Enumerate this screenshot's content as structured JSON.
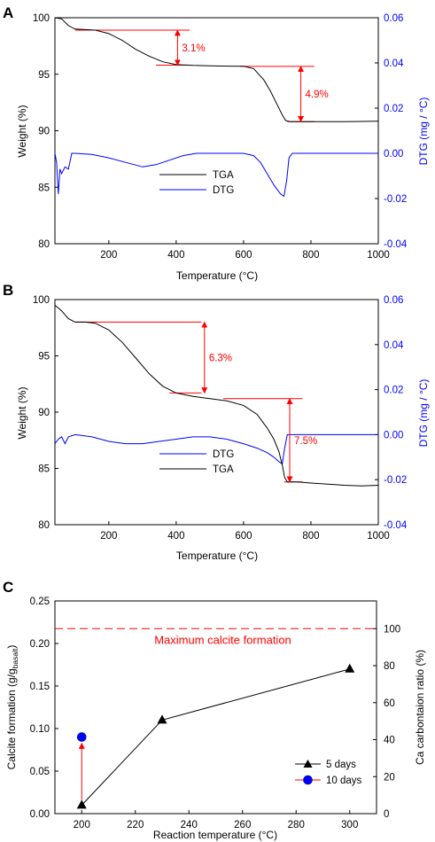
{
  "chart_data": [
    {
      "panel_label": "A",
      "type": "line",
      "xlabel": "Temperature (°C)",
      "ylabel_left": "Weight (%)",
      "ylabel_right": "DTG (mg / °C)",
      "xlim": [
        40,
        1000
      ],
      "ylim_left": [
        80,
        100
      ],
      "ylim_right": [
        -0.04,
        0.06
      ],
      "xticks": [
        200,
        400,
        600,
        800,
        1000
      ],
      "yticks_left": [
        80,
        85,
        90,
        95,
        100
      ],
      "yticks_right": [
        "-0.04",
        "-0.02",
        "0.00",
        "0.02",
        "0.04",
        "0.06"
      ],
      "series": [
        {
          "name": "TGA",
          "axis": "left",
          "color": "#000000",
          "points": [
            [
              40,
              100
            ],
            [
              60,
              99.9
            ],
            [
              80,
              99.3
            ],
            [
              100,
              99.0
            ],
            [
              130,
              98.95
            ],
            [
              160,
              98.9
            ],
            [
              200,
              98.6
            ],
            [
              240,
              98.0
            ],
            [
              280,
              97.2
            ],
            [
              320,
              96.6
            ],
            [
              360,
              96.1
            ],
            [
              400,
              95.85
            ],
            [
              450,
              95.78
            ],
            [
              500,
              95.75
            ],
            [
              550,
              95.72
            ],
            [
              600,
              95.7
            ],
            [
              630,
              95.5
            ],
            [
              660,
              94.5
            ],
            [
              680,
              93.5
            ],
            [
              700,
              92.3
            ],
            [
              715,
              91.4
            ],
            [
              725,
              90.9
            ],
            [
              740,
              90.8
            ],
            [
              800,
              90.8
            ],
            [
              900,
              90.8
            ],
            [
              1000,
              90.85
            ]
          ]
        },
        {
          "name": "DTG",
          "axis": "right",
          "color": "#0000ff",
          "points": [
            [
              40,
              0.0
            ],
            [
              45,
              -0.004
            ],
            [
              50,
              -0.018
            ],
            [
              55,
              -0.007
            ],
            [
              60,
              -0.009
            ],
            [
              70,
              -0.006
            ],
            [
              80,
              -0.007
            ],
            [
              90,
              0.0
            ],
            [
              100,
              0.0
            ],
            [
              150,
              -0.0005
            ],
            [
              200,
              -0.002
            ],
            [
              250,
              -0.004
            ],
            [
              300,
              -0.006
            ],
            [
              340,
              -0.005
            ],
            [
              380,
              -0.003
            ],
            [
              420,
              -0.001
            ],
            [
              460,
              0.0
            ],
            [
              500,
              0.0
            ],
            [
              560,
              0.0
            ],
            [
              600,
              0.0
            ],
            [
              630,
              -0.001
            ],
            [
              650,
              -0.004
            ],
            [
              670,
              -0.009
            ],
            [
              690,
              -0.014
            ],
            [
              700,
              -0.016
            ],
            [
              710,
              -0.018
            ],
            [
              720,
              -0.019
            ],
            [
              728,
              -0.012
            ],
            [
              735,
              -0.002
            ],
            [
              745,
              0.0
            ],
            [
              800,
              0.0
            ],
            [
              1000,
              0.0
            ]
          ]
        }
      ],
      "legend": {
        "position": "center",
        "entries": [
          "TGA",
          "DTG"
        ]
      },
      "annotations": [
        {
          "text": "3.1%",
          "color": "#ff0000",
          "x": 404,
          "y_from": 98.9,
          "y_to": 95.8
        },
        {
          "text": "4.9%",
          "color": "#ff0000",
          "x": 770,
          "y_from": 95.7,
          "y_to": 90.8
        }
      ],
      "reference_lines": [
        {
          "y": 98.9,
          "x_from": 100,
          "x_to": 440
        },
        {
          "y": 95.8,
          "x_from": 340,
          "x_to": 440
        },
        {
          "y": 95.7,
          "x_from": 590,
          "x_to": 810
        },
        {
          "y": 90.8,
          "x_from": 730,
          "x_to": 810
        }
      ]
    },
    {
      "panel_label": "B",
      "type": "line",
      "xlabel": "Temperature (°C)",
      "ylabel_left": "Weight (%)",
      "ylabel_right": "DTG (mg / °C)",
      "xlim": [
        40,
        1000
      ],
      "ylim_left": [
        80,
        100
      ],
      "ylim_right": [
        -0.04,
        0.06
      ],
      "xticks": [
        200,
        400,
        600,
        800,
        1000
      ],
      "yticks_left": [
        80,
        85,
        90,
        95,
        100
      ],
      "yticks_right": [
        "-0.04",
        "-0.02",
        "0.00",
        "0.02",
        "0.04",
        "0.06"
      ],
      "series": [
        {
          "name": "DTG",
          "axis": "right",
          "color": "#0000ff",
          "points": [
            [
              40,
              -0.004
            ],
            [
              50,
              -0.002
            ],
            [
              60,
              -0.001
            ],
            [
              70,
              -0.004
            ],
            [
              80,
              -0.001
            ],
            [
              100,
              0.0
            ],
            [
              150,
              -0.001
            ],
            [
              200,
              -0.003
            ],
            [
              250,
              -0.004
            ],
            [
              300,
              -0.004
            ],
            [
              350,
              -0.003
            ],
            [
              400,
              -0.002
            ],
            [
              450,
              -0.001
            ],
            [
              500,
              -0.001
            ],
            [
              550,
              -0.002
            ],
            [
              600,
              -0.004
            ],
            [
              640,
              -0.006
            ],
            [
              670,
              -0.008
            ],
            [
              690,
              -0.01
            ],
            [
              705,
              -0.012
            ],
            [
              715,
              -0.013
            ],
            [
              722,
              -0.006
            ],
            [
              730,
              0.0
            ],
            [
              760,
              0.0
            ],
            [
              1000,
              0.0
            ]
          ]
        },
        {
          "name": "TGA",
          "axis": "left",
          "color": "#000000",
          "points": [
            [
              40,
              99.5
            ],
            [
              60,
              99.0
            ],
            [
              80,
              98.3
            ],
            [
              100,
              98.0
            ],
            [
              130,
              98.0
            ],
            [
              160,
              97.9
            ],
            [
              200,
              97.3
            ],
            [
              240,
              96.2
            ],
            [
              280,
              94.8
            ],
            [
              320,
              93.4
            ],
            [
              360,
              92.3
            ],
            [
              400,
              91.7
            ],
            [
              450,
              91.4
            ],
            [
              500,
              91.2
            ],
            [
              550,
              91.0
            ],
            [
              600,
              90.6
            ],
            [
              640,
              89.8
            ],
            [
              670,
              88.6
            ],
            [
              690,
              87.6
            ],
            [
              705,
              86.5
            ],
            [
              715,
              85.3
            ],
            [
              722,
              84.2
            ],
            [
              730,
              83.8
            ],
            [
              760,
              83.8
            ],
            [
              800,
              83.7
            ],
            [
              850,
              83.6
            ],
            [
              900,
              83.5
            ],
            [
              950,
              83.45
            ],
            [
              1000,
              83.5
            ]
          ]
        }
      ],
      "legend": {
        "position": "center",
        "entries": [
          "DTG",
          "TGA"
        ]
      },
      "annotations": [
        {
          "text": "6.3%",
          "color": "#ff0000",
          "x": 484,
          "y_from": 98.0,
          "y_to": 91.7
        },
        {
          "text": "7.5%",
          "color": "#ff0000",
          "x": 737,
          "y_from": 91.2,
          "y_to": 83.8
        }
      ],
      "reference_lines": [
        {
          "y": 98.0,
          "x_from": 100,
          "x_to": 475
        },
        {
          "y": 91.7,
          "x_from": 380,
          "x_to": 475
        },
        {
          "y": 91.2,
          "x_from": 540,
          "x_to": 775
        },
        {
          "y": 83.8,
          "x_from": 720,
          "x_to": 775
        }
      ]
    },
    {
      "panel_label": "C",
      "type": "scatter",
      "xlabel": "Reaction temperature (°C)",
      "ylabel_left": "Calcite formation (g/g",
      "ylabel_left_sub": "basalt",
      "ylabel_left_end": ")",
      "ylabel_right": "Ca carbontaion ratio (%)",
      "xlim": [
        190,
        310
      ],
      "ylim_left": [
        0,
        0.25
      ],
      "ylim_right": [
        0,
        115
      ],
      "xticks": [
        200,
        220,
        240,
        260,
        280,
        300
      ],
      "yticks_left": [
        "0.00",
        "0.05",
        "0.10",
        "0.15",
        "0.20",
        "0.25"
      ],
      "yticks_right": [
        0,
        20,
        40,
        60,
        80,
        100
      ],
      "series": [
        {
          "name": "5 days",
          "marker": "triangle",
          "color": "#000000",
          "x": [
            200,
            230,
            300
          ],
          "y": [
            0.01,
            0.11,
            0.17
          ]
        },
        {
          "name": "10 days",
          "marker": "circle",
          "color": "#0000ff",
          "x": [
            200
          ],
          "y": [
            0.09
          ]
        }
      ],
      "reference_lines": [
        {
          "y_right": 100,
          "style": "dashed",
          "color": "#ff0000",
          "label": "Maximum calcite formation"
        }
      ],
      "arrow": {
        "x": 200,
        "y_from": 0.01,
        "y_to": 0.09,
        "color": "#ff0000"
      },
      "legend": {
        "position": "bottom-right",
        "entries": [
          "5 days",
          "10 days"
        ]
      }
    }
  ]
}
